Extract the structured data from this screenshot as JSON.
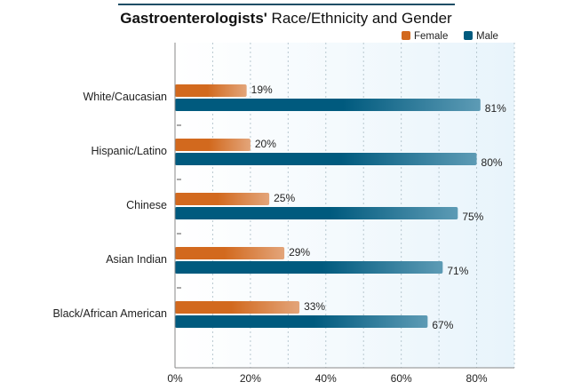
{
  "chart_data": {
    "type": "bar",
    "orientation": "horizontal",
    "title_bold": "Gastroenterologists'",
    "title_rest": " Race/Ethnicity and Gender",
    "categories": [
      "White/Caucasian",
      "Hispanic/Latino",
      "Chinese",
      "Asian Indian",
      "Black/African American"
    ],
    "series": [
      {
        "name": "Female",
        "color": "#d2691e",
        "values": [
          19,
          20,
          25,
          29,
          33
        ]
      },
      {
        "name": "Male",
        "color": "#005a7e",
        "values": [
          81,
          80,
          75,
          71,
          67
        ]
      }
    ],
    "xlim": [
      0,
      90
    ],
    "xticks": [
      0,
      20,
      40,
      60,
      80
    ],
    "xtick_labels": [
      "0%",
      "20%",
      "40%",
      "60%",
      "80%"
    ],
    "value_suffix": "%",
    "grid": "vertical dotted every 10%",
    "legend_placement": "top-right",
    "plot_background": "#eef7fc"
  }
}
